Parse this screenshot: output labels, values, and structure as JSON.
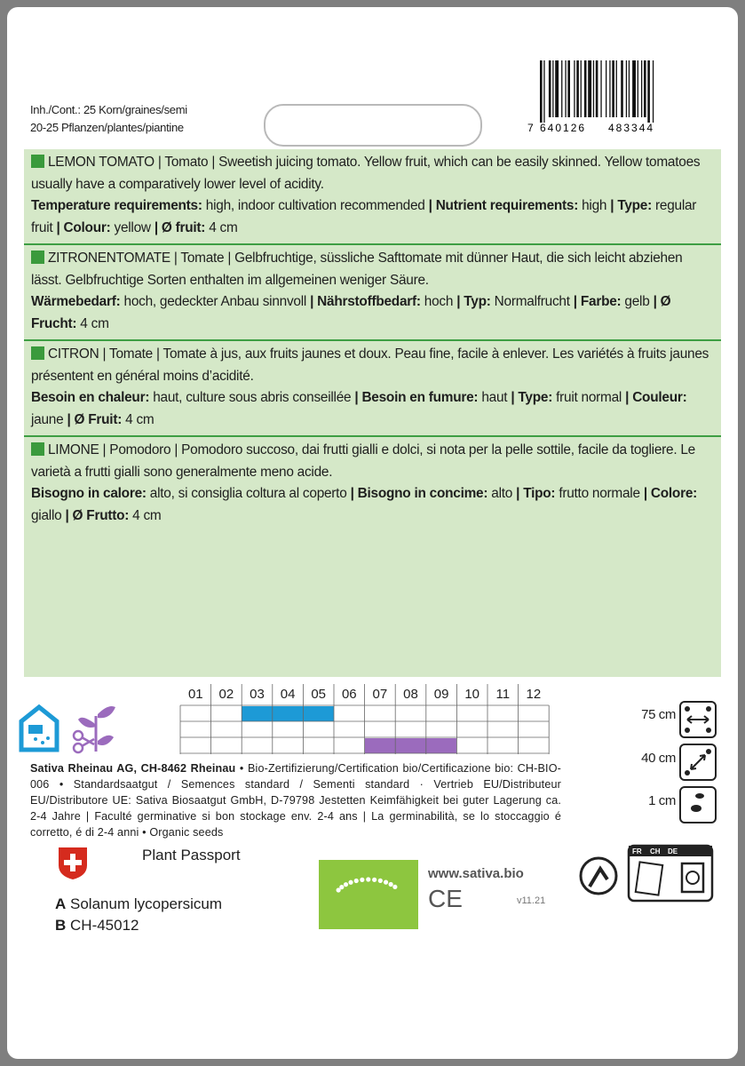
{
  "header": {
    "contents": "Inh./Cont.: 25 Korn/graines/semi",
    "plants": "20-25 Pflanzen/plantes/piantine"
  },
  "barcode": {
    "prefix": "7",
    "left": "640126",
    "right": "483344"
  },
  "sections": [
    {
      "intro": "LEMON TOMATO | Tomato | Sweetish juicing tomato. Yellow fruit, which can be easily skinned. Yellow tomatoes usually have a comparatively lower level of acidity.",
      "details": [
        {
          "bold": true,
          "text": "Temperature requirements:"
        },
        {
          "bold": false,
          "text": " high, indoor cultivation recommended "
        },
        {
          "bold": true,
          "text": "| Nutrient requirements:"
        },
        {
          "bold": false,
          "text": " high "
        },
        {
          "bold": true,
          "text": "| Type:"
        },
        {
          "bold": false,
          "text": " regular fruit "
        },
        {
          "bold": true,
          "text": "| Colour:"
        },
        {
          "bold": false,
          "text": " yellow "
        },
        {
          "bold": true,
          "text": "| Ø fruit:"
        },
        {
          "bold": false,
          "text": " 4 cm"
        }
      ]
    },
    {
      "intro": "ZITRONENTOMATE | Tomate | Gelbfruchtige, süssliche Safttomate mit dünner Haut, die sich leicht abziehen lässt. Gelbfruchtige Sorten enthalten im allgemeinen weniger Säure.",
      "details": [
        {
          "bold": true,
          "text": "Wärmebedarf:"
        },
        {
          "bold": false,
          "text": " hoch, gedeckter Anbau sinnvoll "
        },
        {
          "bold": true,
          "text": "| Nährstoffbedarf:"
        },
        {
          "bold": false,
          "text": " hoch "
        },
        {
          "bold": true,
          "text": "| Typ:"
        },
        {
          "bold": false,
          "text": " Normalfrucht "
        },
        {
          "bold": true,
          "text": "| Farbe:"
        },
        {
          "bold": false,
          "text": " gelb "
        },
        {
          "bold": true,
          "text": "| Ø Frucht:"
        },
        {
          "bold": false,
          "text": " 4 cm"
        }
      ]
    },
    {
      "intro": "CITRON | Tomate | Tomate à jus, aux fruits jaunes et doux. Peau fine, facile à enlever. Les variétés à fruits jaunes présentent en général moins d’acidité.",
      "details": [
        {
          "bold": true,
          "text": "Besoin en chaleur:"
        },
        {
          "bold": false,
          "text": " haut, culture sous abris conseillée "
        },
        {
          "bold": true,
          "text": "| Besoin en fumure:"
        },
        {
          "bold": false,
          "text": " haut "
        },
        {
          "bold": true,
          "text": "| Type:"
        },
        {
          "bold": false,
          "text": " fruit normal "
        },
        {
          "bold": true,
          "text": "| Couleur:"
        },
        {
          "bold": false,
          "text": " jaune "
        },
        {
          "bold": true,
          "text": "| Ø Fruit:"
        },
        {
          "bold": false,
          "text": " 4 cm"
        }
      ]
    },
    {
      "intro": "LIMONE | Pomodoro | Pomodoro succoso, dai frutti gialli e dolci, si nota per la pelle sottile, facile da togliere. Le varietà a frutti gialli sono generalmente meno acide.",
      "details": [
        {
          "bold": true,
          "text": "Bisogno in calore:"
        },
        {
          "bold": false,
          "text": " alto, si consiglia coltura al coperto "
        },
        {
          "bold": true,
          "text": "| Bisogno in concime:"
        },
        {
          "bold": false,
          "text": " alto "
        },
        {
          "bold": true,
          "text": "| Tipo:"
        },
        {
          "bold": false,
          "text": " frutto normale "
        },
        {
          "bold": true,
          "text": "| Colore:"
        },
        {
          "bold": false,
          "text": " giallo "
        },
        {
          "bold": true,
          "text": "| Ø Frutto:"
        },
        {
          "bold": false,
          "text": " 4 cm"
        }
      ]
    }
  ],
  "calendar": {
    "months": [
      "01",
      "02",
      "03",
      "04",
      "05",
      "06",
      "07",
      "08",
      "09",
      "10",
      "11",
      "12"
    ]
  },
  "spacing": [
    "75 cm",
    "40 cm",
    "1 cm"
  ],
  "imprint": [
    {
      "bold": true,
      "text": "Sativa Rheinau AG, CH-8462 Rheinau"
    },
    {
      "bold": false,
      "text": " • Bio-Zertifizierung/Certification bio/Certificazione bio: CH-BIO-006 • Standardsaatgut / Semences standard / Sementi standard · Vertrieb EU/Distributeur EU/Distributore UE: Sativa Biosaatgut GmbH, D-79798 Jestetten Keimfähigkeit bei guter Lagerung ca. 2-4 Jahre | Faculté germinative si bon stockage env. 2-4 ans | La germinabilità, se lo stoccaggio é corretto, é di 2-4 anni • Organic seeds"
    }
  ],
  "plant_passport": {
    "title": "Plant Passport",
    "a_key": "A",
    "a_value": "Solanum lycopersicum",
    "b_key": "B",
    "b_value": "CH-45012"
  },
  "website": "www.sativa.bio",
  "ce": "CE",
  "version": "v11.21",
  "recycling": [
    "FR",
    "CH",
    "DE"
  ]
}
